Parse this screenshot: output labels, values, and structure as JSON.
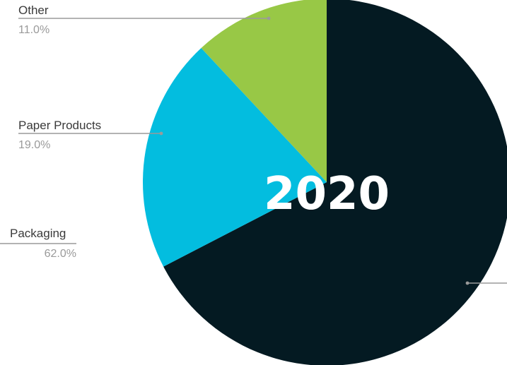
{
  "chart_data": {
    "type": "pie",
    "title": "2020",
    "slices": [
      {
        "label": "Packaging",
        "value": 62.0,
        "value_label": "62.0%",
        "color": "#041a22"
      },
      {
        "label": "Paper Products",
        "value": 19.0,
        "value_label": "19.0%",
        "color": "#03bddf"
      },
      {
        "label": "Other",
        "value": 11.0,
        "value_label": "11.0%",
        "color": "#98c846"
      }
    ],
    "start": "12 o'clock, clockwise",
    "legend": "none",
    "labels": "outside with leader lines"
  }
}
